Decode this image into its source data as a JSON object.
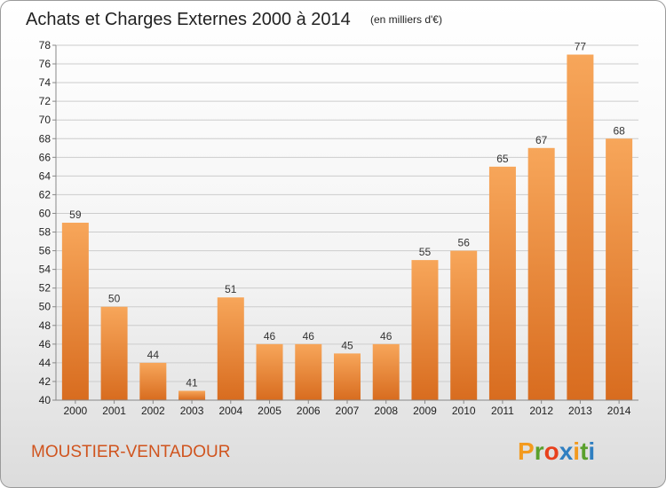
{
  "header": {
    "title": "Achats et Charges Externes 2000 à 2014",
    "unit": "(en milliers d'€)"
  },
  "footer": {
    "commune": "MOUSTIER-VENTADOUR",
    "logo_text": "Proxiti"
  },
  "colors": {
    "bar_light": "#f7a65a",
    "bar_dark": "#d86c1f",
    "grid": "#cccccc",
    "commune": "#d0541e",
    "logo_letters": [
      "#f39a1e",
      "#5aa02c",
      "#e8401c",
      "#2f7fc1",
      "#f39a1e",
      "#5aa02c",
      "#2f7fc1"
    ]
  },
  "chart_data": {
    "type": "bar",
    "title": "Achats et Charges Externes 2000 à 2014",
    "subtitle": "(en milliers d'€)",
    "categories": [
      "2000",
      "2001",
      "2002",
      "2003",
      "2004",
      "2005",
      "2006",
      "2007",
      "2008",
      "2009",
      "2010",
      "2011",
      "2012",
      "2013",
      "2014"
    ],
    "values": [
      59,
      50,
      44,
      41,
      51,
      46,
      46,
      45,
      46,
      55,
      56,
      65,
      67,
      77,
      68
    ],
    "ylim": [
      40,
      78
    ],
    "ytick_step": 2,
    "grid": true,
    "legend": "none"
  }
}
